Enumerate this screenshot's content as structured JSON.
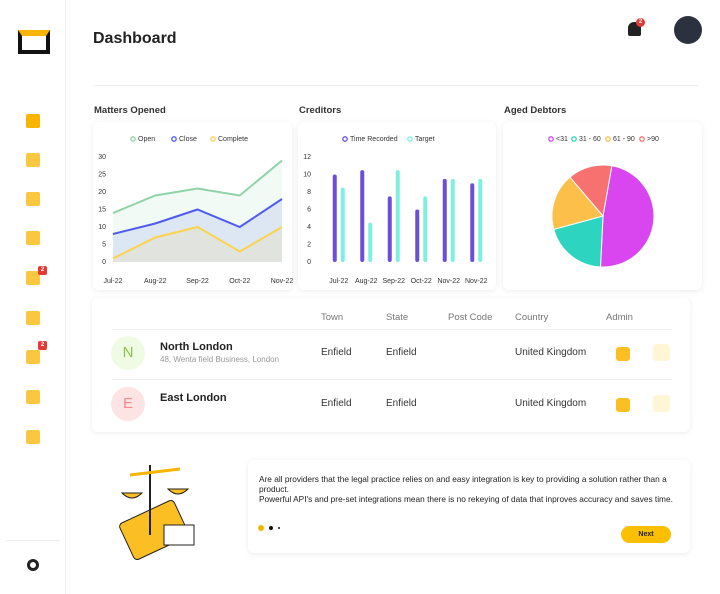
{
  "header": {
    "title": "Dashboard",
    "notification_count": 2
  },
  "sidebar": {
    "badges": [
      2,
      2
    ]
  },
  "chart_data": [
    {
      "type": "line",
      "title": "Matters Opened",
      "categories": [
        "Jul-22",
        "Aug-22",
        "Sep-22",
        "Oct-22",
        "Nov-22"
      ],
      "series": [
        {
          "name": "Open",
          "color": "#8fd3a8",
          "values": [
            14,
            19,
            21,
            19,
            29
          ]
        },
        {
          "name": "Close",
          "color": "#4f5bf0",
          "values": [
            8,
            11,
            15,
            10,
            18
          ]
        },
        {
          "name": "Complete",
          "color": "#fcd34d",
          "values": [
            1,
            7,
            10,
            3,
            10
          ]
        }
      ],
      "ylim": [
        0,
        30
      ],
      "yticks": [
        0,
        5,
        10,
        15,
        20,
        25,
        30
      ]
    },
    {
      "type": "bar",
      "title": "Creditors",
      "categories": [
        "Jul-22",
        "Aug-22",
        "Sep-22",
        "Oct-22",
        "Nov-22",
        "Nov-22"
      ],
      "series": [
        {
          "name": "Time Recorded",
          "color": "#6b4fd8",
          "values": [
            10,
            10.5,
            7.5,
            6,
            9.5,
            9
          ]
        },
        {
          "name": "Target",
          "color": "#7ef0e0",
          "values": [
            8.5,
            4.5,
            10.5,
            7.5,
            9.5,
            9.5
          ]
        }
      ],
      "ylim": [
        0,
        12
      ],
      "yticks": [
        0,
        2,
        4,
        6,
        8,
        10,
        12
      ]
    },
    {
      "type": "pie",
      "title": "Aged Debtors",
      "categories": [
        "<31",
        "31 - 60",
        "61 - 90",
        ">90"
      ],
      "values": [
        48,
        20,
        18,
        14
      ],
      "colors": [
        "#d946ef",
        "#2dd4bf",
        "#fbbf4a",
        "#f87171"
      ]
    }
  ],
  "table": {
    "columns": [
      "Town",
      "State",
      "Post Code",
      "Country",
      "Admin"
    ],
    "rows": [
      {
        "initial": "N",
        "name": "North London",
        "address": "48, Wenta field Business, London",
        "town": "Enfield",
        "state": "Enfield",
        "country": "United Kingdom"
      },
      {
        "initial": "E",
        "name": "East London",
        "town": "Enfield",
        "state": "Enfield",
        "country": "United Kingdom"
      }
    ]
  },
  "info": {
    "text": [
      "Are all providers that the legal practice relies on and easy integration is key to providing a solution rather than a product.",
      "Powerful API's and pre-set integrations mean there is no rekeying of data that inproves accuracy and saves time."
    ],
    "button": "Next"
  }
}
